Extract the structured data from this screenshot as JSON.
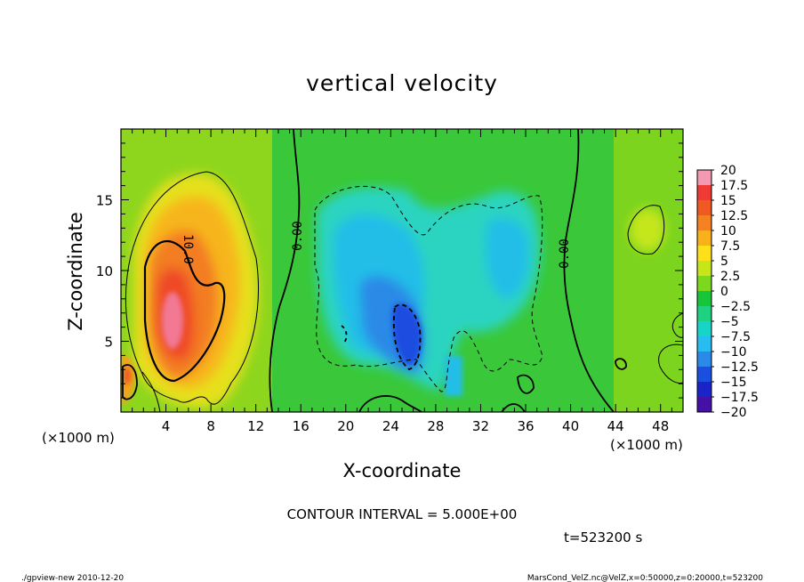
{
  "chart_data": {
    "type": "heatmap",
    "title": "vertical velocity",
    "xlabel": "X-coordinate",
    "ylabel": "Z-coordinate",
    "x_unit": "(×1000 m)",
    "y_unit": "(×1000 m)",
    "xlim": [
      0,
      50
    ],
    "ylim": [
      0,
      20
    ],
    "x_ticks": [
      4,
      8,
      12,
      16,
      20,
      24,
      28,
      32,
      36,
      40,
      44,
      48
    ],
    "y_ticks": [
      5,
      10,
      15
    ],
    "contour_interval_label": "CONTOUR INTERVAL = 5.000E+00",
    "time_label": "t=523200 s",
    "contour_labels": [
      {
        "text": "10.0",
        "x": 6.0,
        "z": 11.3
      },
      {
        "text": "0.00",
        "x": 15.6,
        "z": 12.5
      },
      {
        "text": "0.00",
        "x": 39.3,
        "z": 11.1
      }
    ],
    "colorbar": {
      "labels": [
        "20",
        "17.5",
        "15",
        "12.5",
        "10",
        "7.5",
        "5",
        "2.5",
        "0",
        "−2.5",
        "−5",
        "−7.5",
        "−10",
        "−12.5",
        "−15",
        "−17.5",
        "−20"
      ],
      "colors": [
        "#f49ab0",
        "#ee3a32",
        "#f05a20",
        "#f58220",
        "#f9b11a",
        "#fde01a",
        "#c6e61a",
        "#7cd81c",
        "#18c43a",
        "#1ed282",
        "#16d4c8",
        "#28bdf0",
        "#2a8ae8",
        "#1a50e0",
        "#1a24c8",
        "#4410a8"
      ]
    },
    "features": [
      {
        "name": "updraft core",
        "x": 5.5,
        "z": 7.5,
        "value": 17.5
      },
      {
        "name": "updraft region",
        "x": 6.5,
        "z": 9.0,
        "value": 10.0
      },
      {
        "name": "downdraft core",
        "x": 25.5,
        "z": 5.5,
        "value": -12.5
      },
      {
        "name": "downdraft region",
        "x": 24.0,
        "z": 8.0,
        "value": -7.5
      },
      {
        "name": "downdraft region",
        "x": 34.5,
        "z": 10.0,
        "value": -5.0
      },
      {
        "name": "weak updraft",
        "x": 47.5,
        "z": 12.5,
        "value": 2.5
      },
      {
        "name": "weak updraft",
        "x": 0.5,
        "z": 3.0,
        "value": 10.0
      }
    ]
  },
  "footer": {
    "left": "./gpview-new  2010-12-20",
    "right": "MarsCond_VelZ.nc@VelZ,x=0:50000,z=0:20000,t=523200"
  }
}
